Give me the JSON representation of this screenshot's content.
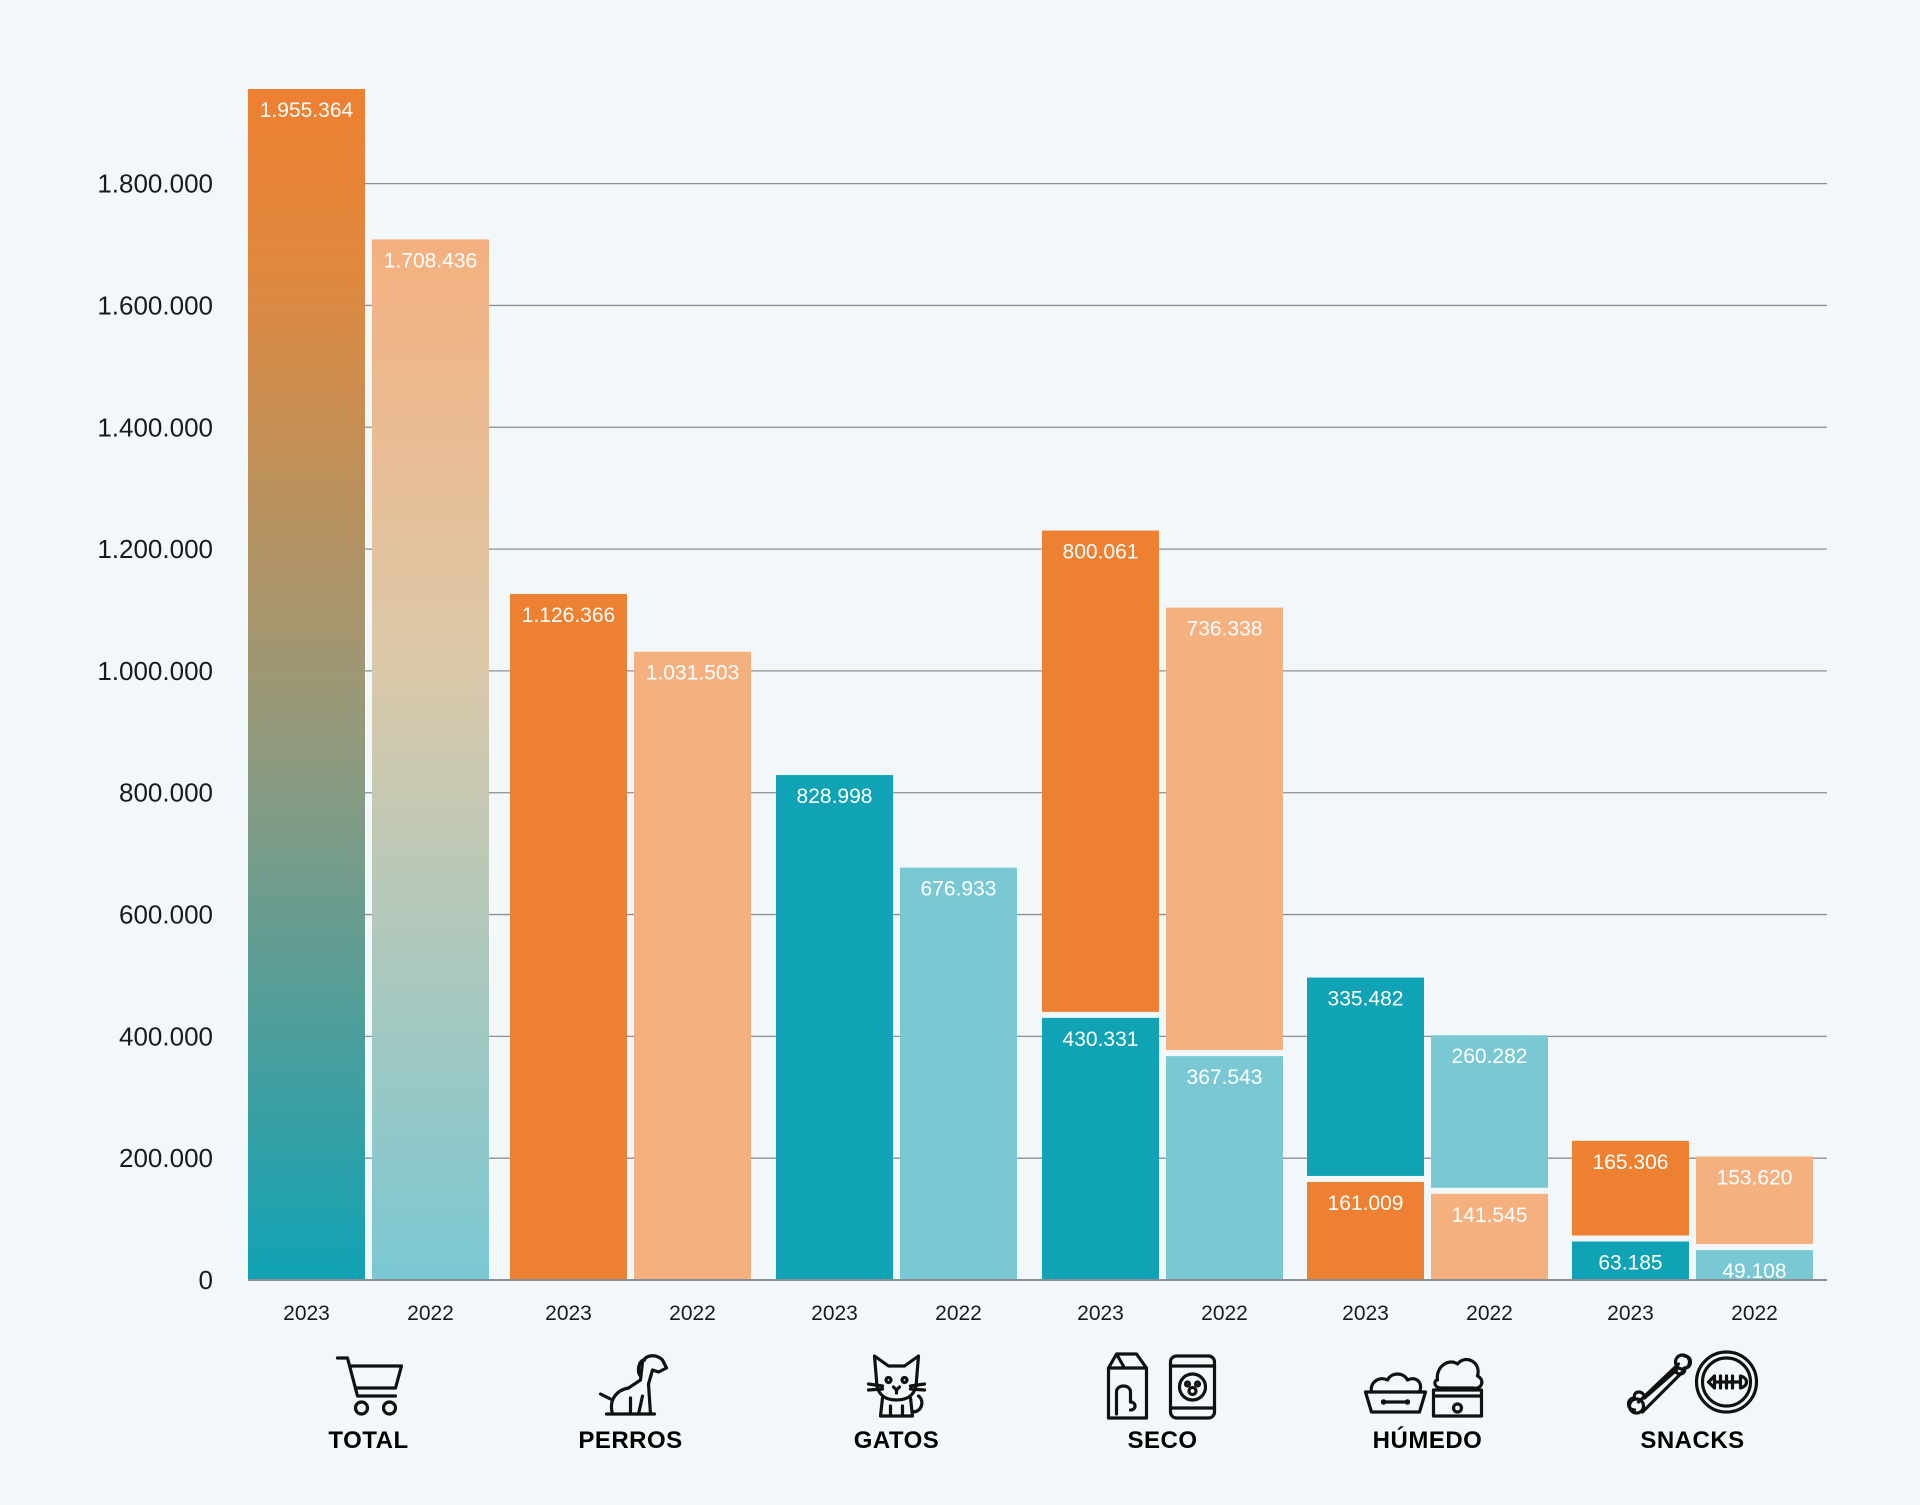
{
  "colors": {
    "orange_2023": "#ee8032",
    "orange_2022": "#f5b07f",
    "teal_2023": "#10a2b5",
    "teal_2022": "#7ac8d3",
    "grid": "#8a8f95",
    "background": "#f2f8fa"
  },
  "chart_data": {
    "type": "bar",
    "ylim": [
      0,
      1955364
    ],
    "grid": true,
    "yticks": [
      "0",
      "200.000",
      "400.000",
      "600.000",
      "800.000",
      "1.000.000",
      "1.200.000",
      "1.400.000",
      "1.600.000",
      "1.800.000"
    ],
    "ytick_values": [
      0,
      200000,
      400000,
      600000,
      800000,
      1000000,
      1200000,
      1400000,
      1600000,
      1800000
    ],
    "groups": [
      {
        "name": "TOTAL",
        "icons": [
          "shopping-cart-icon"
        ],
        "bars": [
          {
            "year": "2023",
            "segments": [
              {
                "value": 1955364,
                "label": "1.955.364",
                "color": "gradient:#ee8032>#10a2b5"
              }
            ]
          },
          {
            "year": "2022",
            "segments": [
              {
                "value": 1708436,
                "label": "1.708.436",
                "color": "gradient:#f5b07f>#7ac8d3"
              }
            ]
          }
        ]
      },
      {
        "name": "PERROS",
        "icons": [
          "dog-icon"
        ],
        "bars": [
          {
            "year": "2023",
            "segments": [
              {
                "value": 1126366,
                "label": "1.126.366",
                "color": "#ee8032"
              }
            ]
          },
          {
            "year": "2022",
            "segments": [
              {
                "value": 1031503,
                "label": "1.031.503",
                "color": "#f5b07f"
              }
            ]
          }
        ]
      },
      {
        "name": "GATOS",
        "icons": [
          "cat-icon"
        ],
        "bars": [
          {
            "year": "2023",
            "segments": [
              {
                "value": 828998,
                "label": "828.998",
                "color": "#10a2b5"
              }
            ]
          },
          {
            "year": "2022",
            "segments": [
              {
                "value": 676933,
                "label": "676.933",
                "color": "#7ac8d3"
              }
            ]
          }
        ]
      },
      {
        "name": "SECO",
        "icons": [
          "dry-food-bag-icon",
          "pet-food-bag-icon"
        ],
        "bars": [
          {
            "year": "2023",
            "segments": [
              {
                "value": 430331,
                "label": "430.331",
                "color": "#10a2b5"
              },
              {
                "value": 800061,
                "label": "800.061",
                "color": "#ee8032"
              }
            ]
          },
          {
            "year": "2022",
            "segments": [
              {
                "value": 367543,
                "label": "367.543",
                "color": "#7ac8d3"
              },
              {
                "value": 736338,
                "label": "736.338",
                "color": "#f5b07f"
              }
            ]
          }
        ]
      },
      {
        "name": "HÚMEDO",
        "icons": [
          "food-bowl-icon",
          "wet-food-can-icon"
        ],
        "bars": [
          {
            "year": "2023",
            "segments": [
              {
                "value": 161009,
                "label": "161.009",
                "color": "#ee8032"
              },
              {
                "value": 335482,
                "label": "335.482",
                "color": "#10a2b5"
              }
            ]
          },
          {
            "year": "2022",
            "segments": [
              {
                "value": 141545,
                "label": "141.545",
                "color": "#f5b07f"
              },
              {
                "value": 260282,
                "label": "260.282",
                "color": "#7ac8d3"
              }
            ]
          }
        ]
      },
      {
        "name": "SNACKS",
        "icons": [
          "bone-icon",
          "fish-treat-icon"
        ],
        "bars": [
          {
            "year": "2023",
            "segments": [
              {
                "value": 63185,
                "label": "63.185",
                "color": "#10a2b5"
              },
              {
                "value": 165306,
                "label": "165.306",
                "color": "#ee8032"
              }
            ]
          },
          {
            "year": "2022",
            "segments": [
              {
                "value": 49108,
                "label": "49.108",
                "color": "#7ac8d3"
              },
              {
                "value": 153620,
                "label": "153.620",
                "color": "#f5b07f"
              }
            ]
          }
        ]
      }
    ]
  }
}
